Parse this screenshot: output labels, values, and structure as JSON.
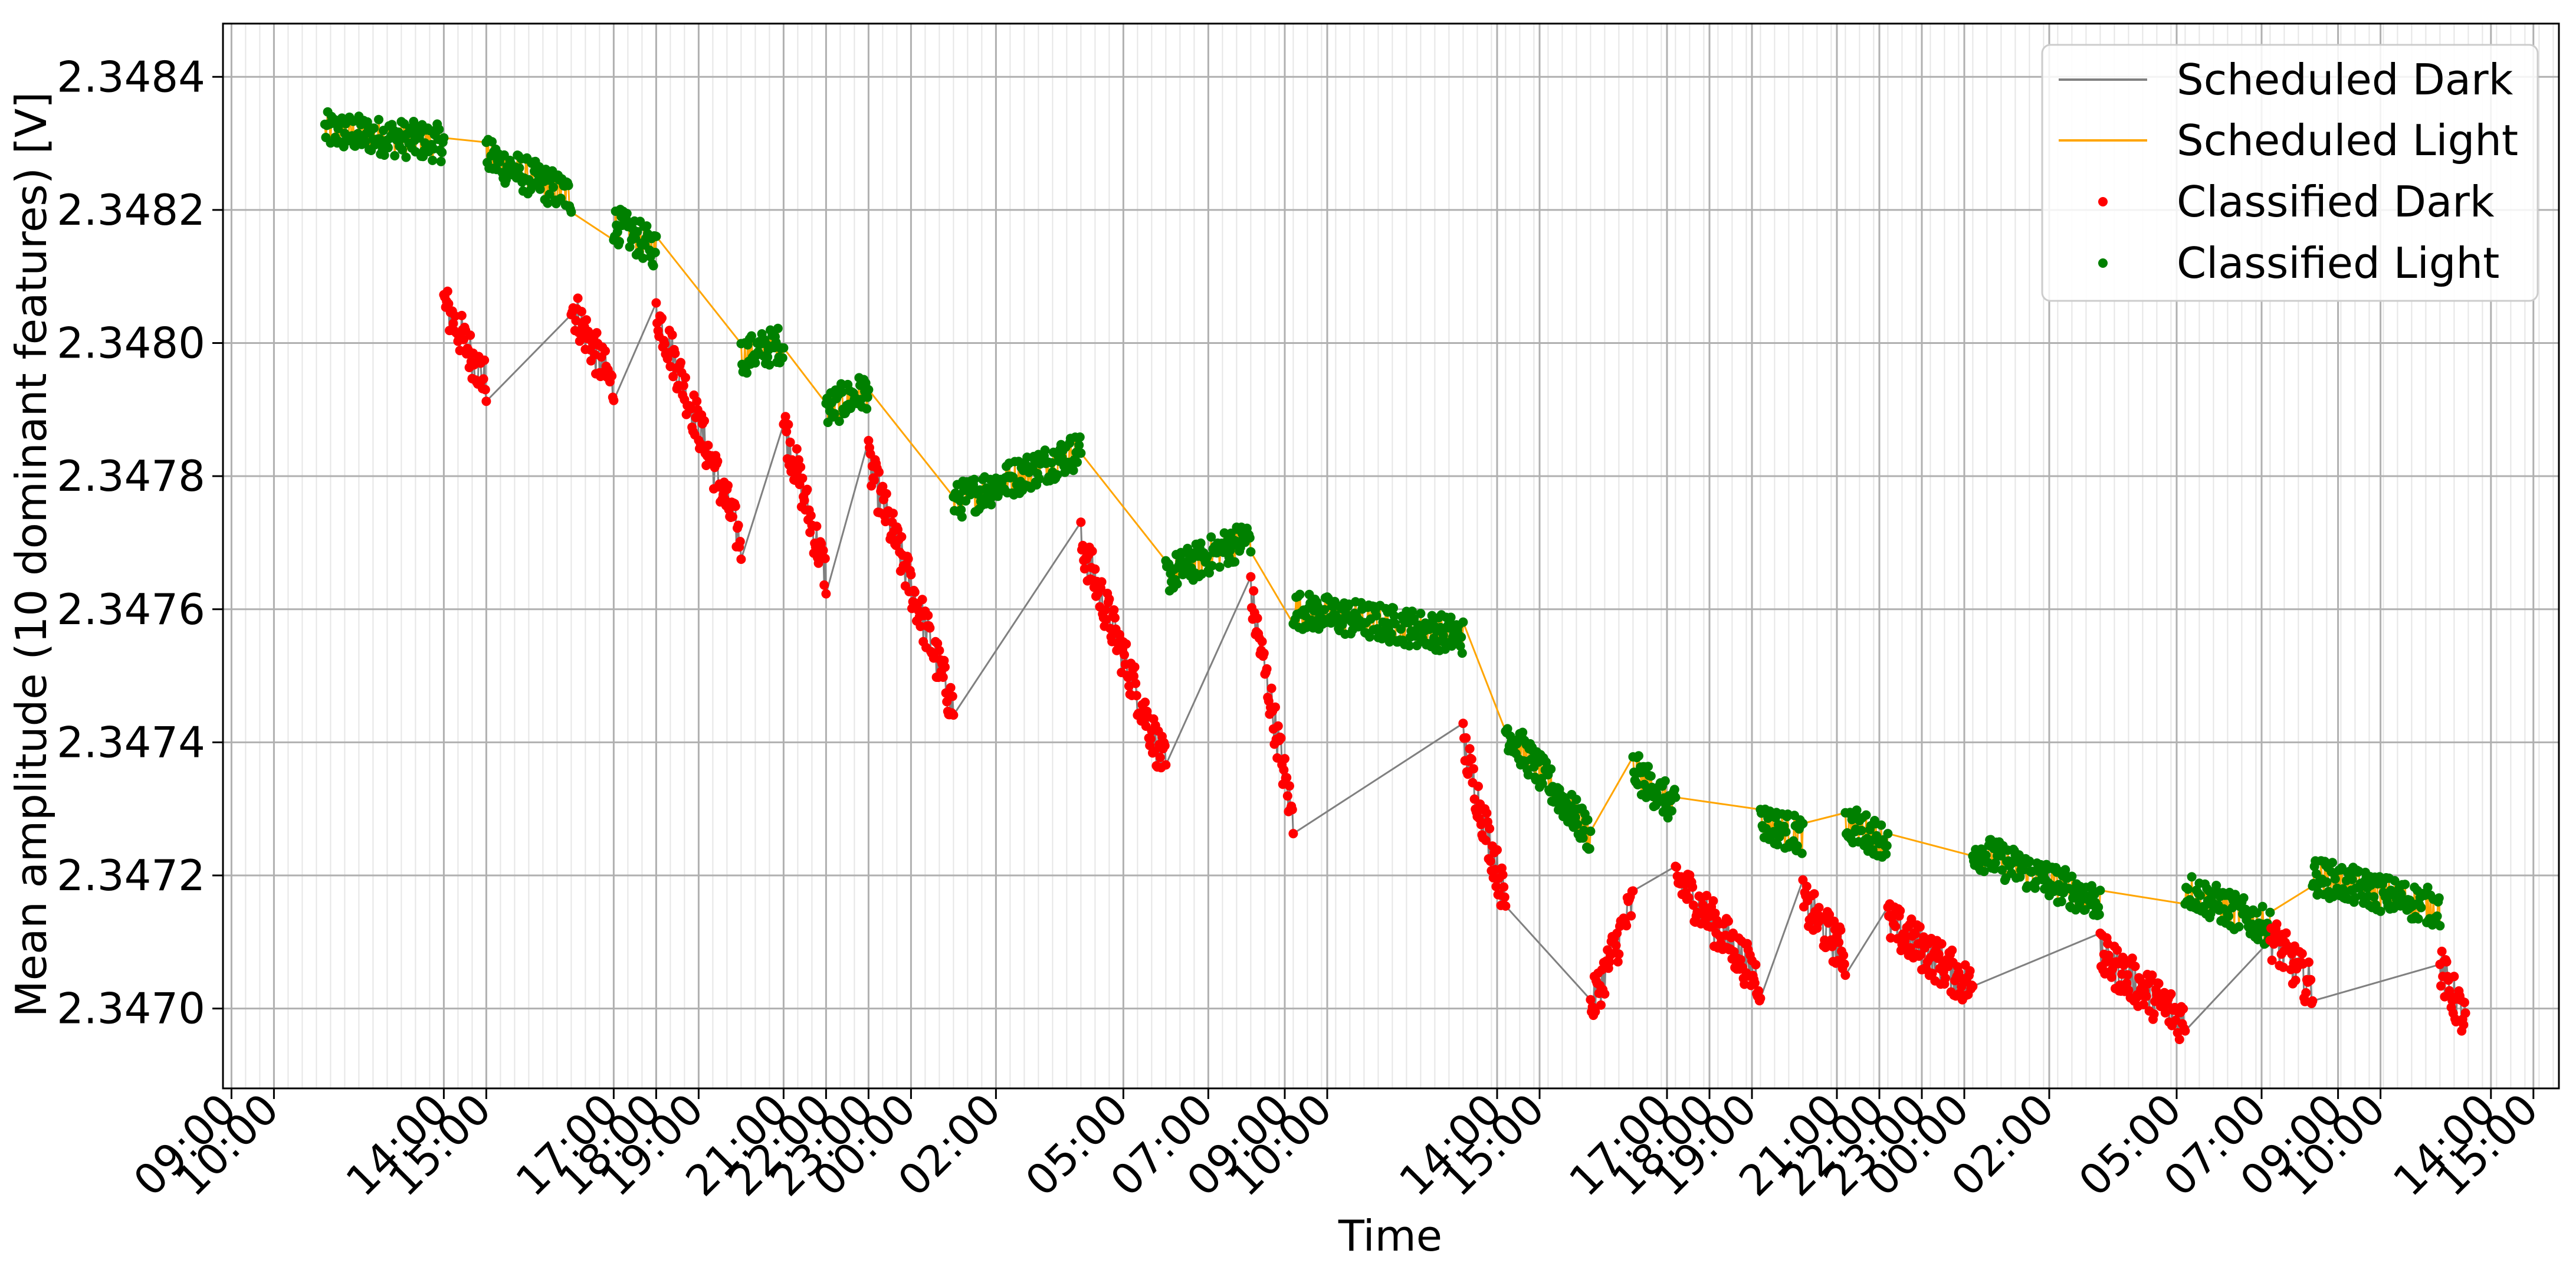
{
  "chart_data": {
    "type": "line",
    "title": "",
    "xlabel": "Time",
    "ylabel": "Mean amplitude (10 dominant features) [V]",
    "ylim": [
      2.34688,
      2.34848
    ],
    "yticks": [
      "2.3470",
      "2.3472",
      "2.3474",
      "2.3476",
      "2.3478",
      "2.3480",
      "2.3482",
      "2.3484"
    ],
    "ytick_values": [
      2.347,
      2.3472,
      2.3474,
      2.3476,
      2.3478,
      2.348,
      2.3482,
      2.3484
    ],
    "xlim": [
      -0.1,
      27.4
    ],
    "xticks": [
      "09:00",
      "10:00",
      "14:00",
      "15:00",
      "17:00",
      "18:00",
      "19:00",
      "21:00",
      "22:00",
      "23:00",
      "00:00",
      "02:00",
      "05:00",
      "07:00",
      "09:00",
      "10:00",
      "14:00",
      "15:00",
      "17:00",
      "18:00",
      "19:00",
      "21:00",
      "22:00",
      "23:00",
      "00:00",
      "02:00",
      "05:00",
      "07:00",
      "09:00",
      "10:00",
      "14:00",
      "15:00"
    ],
    "xtick_positions": [
      0,
      0.5,
      2.5,
      3,
      4.5,
      5,
      5.5,
      6.5,
      7,
      7.5,
      8,
      9,
      10.5,
      11.5,
      12.4,
      12.9,
      14.9,
      15.4,
      16.9,
      17.4,
      17.9,
      18.9,
      19.4,
      19.9,
      20.4,
      21.4,
      22.9,
      23.9,
      24.8,
      25.3,
      26.6,
      27.1
    ],
    "grid": true,
    "legend_position": "top-right",
    "colors": {
      "scheduled_dark": "#808080",
      "scheduled_light": "#ffa500",
      "classified_dark": "#ff0000",
      "classified_light": "#008000"
    },
    "series": [
      {
        "name": "Scheduled Dark",
        "style": "line",
        "color": "#808080"
      },
      {
        "name": "Scheduled Light",
        "style": "line",
        "color": "#ffa500"
      },
      {
        "name": "Classified Dark",
        "style": "marker",
        "color": "#ff0000"
      },
      {
        "name": "Classified Light",
        "style": "marker",
        "color": "#008000"
      }
    ],
    "segments": [
      {
        "class": "light",
        "x": [
          1.1,
          2.5
        ],
        "y": [
          2.34832,
          2.3483
        ]
      },
      {
        "class": "dark",
        "x": [
          2.5,
          3.0
        ],
        "y": [
          2.34806,
          2.34794
        ]
      },
      {
        "class": "light",
        "x": [
          3.0,
          4.0
        ],
        "y": [
          2.34828,
          2.34822
        ]
      },
      {
        "class": "dark",
        "x": [
          4.0,
          4.5
        ],
        "y": [
          2.34806,
          2.34793
        ]
      },
      {
        "class": "light",
        "x": [
          4.5,
          5.0
        ],
        "y": [
          2.34818,
          2.34814
        ]
      },
      {
        "class": "dark",
        "x": [
          5.0,
          6.0
        ],
        "y": [
          2.34805,
          2.3477
        ]
      },
      {
        "class": "light",
        "x": [
          6.0,
          6.5
        ],
        "y": [
          2.34798,
          2.348
        ]
      },
      {
        "class": "dark",
        "x": [
          6.5,
          7.0
        ],
        "y": [
          2.34788,
          2.34765
        ]
      },
      {
        "class": "light",
        "x": [
          7.0,
          7.5
        ],
        "y": [
          2.3479,
          2.34793
        ]
      },
      {
        "class": "dark",
        "x": [
          7.5,
          8.5
        ],
        "y": [
          2.34782,
          2.34745
        ]
      },
      {
        "class": "light",
        "x": [
          8.5,
          10.0
        ],
        "y": [
          2.34776,
          2.34784
        ]
      },
      {
        "class": "dark",
        "x": [
          10.0,
          11.0
        ],
        "y": [
          2.3477,
          2.34736
        ]
      },
      {
        "class": "light",
        "x": [
          11.0,
          12.0
        ],
        "y": [
          2.34765,
          2.34771
        ]
      },
      {
        "class": "dark",
        "x": [
          12.0,
          12.5
        ],
        "y": [
          2.34762,
          2.34728
        ]
      },
      {
        "class": "light",
        "x": [
          12.5,
          14.5
        ],
        "y": [
          2.3476,
          2.34756
        ]
      },
      {
        "class": "dark",
        "x": [
          14.5,
          15.0
        ],
        "y": [
          2.3474,
          2.34716
        ]
      },
      {
        "class": "light",
        "x": [
          15.0,
          16.0
        ],
        "y": [
          2.34742,
          2.34726
        ]
      },
      {
        "class": "dark",
        "x": [
          16.0,
          16.5
        ],
        "y": [
          2.347,
          2.34716
        ]
      },
      {
        "class": "light",
        "x": [
          16.5,
          17.0
        ],
        "y": [
          2.34736,
          2.3473
        ]
      },
      {
        "class": "dark",
        "x": [
          17.0,
          18.0
        ],
        "y": [
          2.3472,
          2.34704
        ]
      },
      {
        "class": "light",
        "x": [
          18.0,
          18.5
        ],
        "y": [
          2.34728,
          2.34726
        ]
      },
      {
        "class": "dark",
        "x": [
          18.5,
          19.0
        ],
        "y": [
          2.34716,
          2.34708
        ]
      },
      {
        "class": "light",
        "x": [
          19.0,
          19.5
        ],
        "y": [
          2.34728,
          2.34725
        ]
      },
      {
        "class": "dark",
        "x": [
          19.5,
          20.5
        ],
        "y": [
          2.34713,
          2.34703
        ]
      },
      {
        "class": "light",
        "x": [
          20.5,
          22.0
        ],
        "y": [
          2.34724,
          2.34716
        ]
      },
      {
        "class": "dark",
        "x": [
          22.0,
          23.0
        ],
        "y": [
          2.34708,
          2.34698
        ]
      },
      {
        "class": "light",
        "x": [
          23.0,
          24.0
        ],
        "y": [
          2.34718,
          2.34712
        ]
      },
      {
        "class": "dark",
        "x": [
          24.0,
          24.5
        ],
        "y": [
          2.34711,
          2.34703
        ]
      },
      {
        "class": "light",
        "x": [
          24.5,
          26.0
        ],
        "y": [
          2.3472,
          2.34715
        ]
      },
      {
        "class": "dark",
        "x": [
          26.0,
          26.3
        ],
        "y": [
          2.34706,
          2.34698
        ]
      }
    ]
  }
}
